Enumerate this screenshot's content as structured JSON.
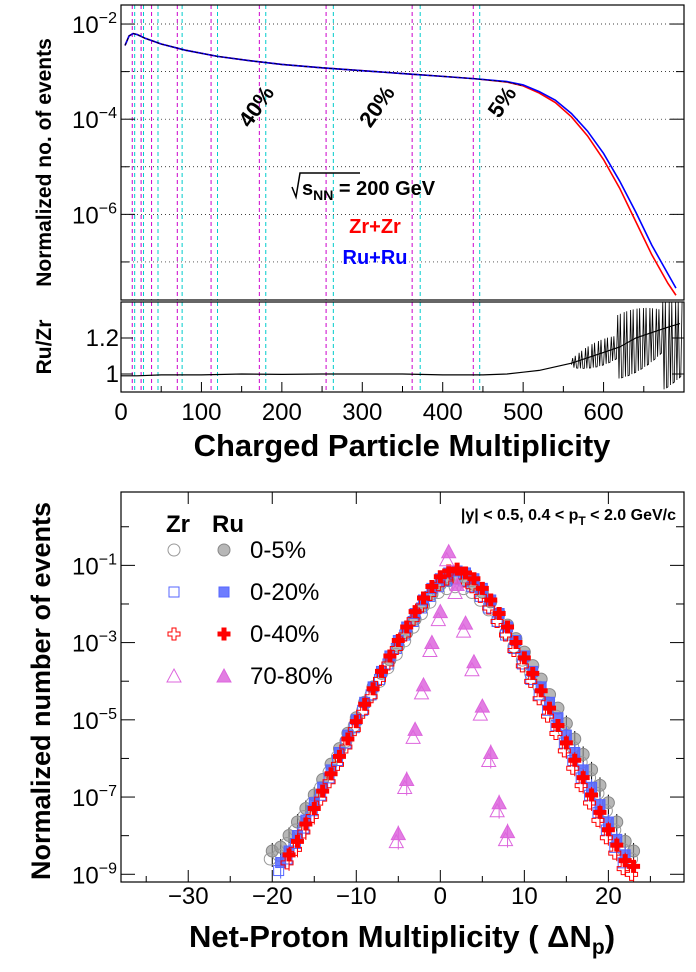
{
  "chart_data": [
    {
      "type": "line",
      "panel": "top-upper",
      "ylabel": "Normalized no. of events",
      "ylog": true,
      "xlim": [
        0,
        700
      ],
      "ylim_exp": [
        -7.8,
        -1.6
      ],
      "y_ticks": [
        {
          "base": "10",
          "exp": "−2",
          "value_exp": -2
        },
        {
          "base": "10",
          "exp": "−4",
          "value_exp": -4
        },
        {
          "base": "10",
          "exp": "−6",
          "value_exp": -6
        }
      ],
      "series": [
        {
          "name": "Zr+Zr",
          "color": "#ff0000",
          "x": [
            5,
            10,
            15,
            20,
            30,
            50,
            80,
            120,
            160,
            200,
            250,
            300,
            350,
            400,
            440,
            480,
            500,
            520,
            540,
            560,
            580,
            600,
            620,
            640,
            660,
            680,
            690
          ],
          "y_log10": [
            -2.45,
            -2.25,
            -2.2,
            -2.22,
            -2.3,
            -2.42,
            -2.55,
            -2.68,
            -2.77,
            -2.85,
            -2.92,
            -2.98,
            -3.04,
            -3.1,
            -3.15,
            -3.22,
            -3.3,
            -3.45,
            -3.65,
            -3.95,
            -4.35,
            -4.85,
            -5.45,
            -6.15,
            -6.85,
            -7.45,
            -7.7
          ]
        },
        {
          "name": "Ru+Ru",
          "color": "#0000ff",
          "x": [
            5,
            10,
            15,
            20,
            30,
            50,
            80,
            120,
            160,
            200,
            250,
            300,
            350,
            400,
            440,
            480,
            500,
            520,
            540,
            560,
            580,
            600,
            620,
            640,
            660,
            680,
            690
          ],
          "y_log10": [
            -2.45,
            -2.25,
            -2.2,
            -2.22,
            -2.3,
            -2.42,
            -2.55,
            -2.68,
            -2.77,
            -2.85,
            -2.92,
            -2.98,
            -3.04,
            -3.1,
            -3.15,
            -3.21,
            -3.28,
            -3.42,
            -3.6,
            -3.88,
            -4.25,
            -4.72,
            -5.3,
            -5.95,
            -6.65,
            -7.25,
            -7.55
          ]
        }
      ],
      "centrality_labels": [
        {
          "text": "40%",
          "x": 160,
          "y_exp": -4.2
        },
        {
          "text": "20%",
          "x": 310,
          "y_exp": -4.2
        },
        {
          "text": "5%",
          "x": 470,
          "y_exp": -4.0
        }
      ],
      "cut_lines": {
        "magenta": [
          14,
          25,
          38,
          70,
          112,
          172,
          255,
          362,
          438
        ],
        "cyan": [
          17,
          28,
          46,
          76,
          120,
          180,
          264,
          372,
          446
        ]
      },
      "energy_label": "s",
      "energy_sub": "NN",
      "energy_value": " = 200 GeV",
      "legend": [
        {
          "text": "Zr+Zr",
          "color": "#ff0000"
        },
        {
          "text": "Ru+Ru",
          "color": "#0000ff"
        }
      ]
    },
    {
      "type": "line",
      "panel": "top-ratio",
      "ylabel": "Ru/Zr",
      "xlabel": "Charged Particle Multiplicity",
      "xlim": [
        0,
        700
      ],
      "ylim": [
        0.9,
        1.4
      ],
      "x_ticks": [
        "0",
        "100",
        "200",
        "300",
        "400",
        "500",
        "600"
      ],
      "y_ticks": [
        "1",
        "1.2"
      ],
      "ratio_points": {
        "x": [
          0,
          20,
          50,
          100,
          150,
          200,
          250,
          300,
          350,
          400,
          450,
          480,
          500,
          520,
          540,
          560,
          580,
          600,
          620,
          640,
          660,
          680,
          695
        ],
        "y": [
          0.99,
          0.99,
          0.995,
          0.995,
          1.0,
          0.998,
          1.0,
          1.0,
          1.0,
          0.995,
          0.995,
          1.0,
          1.01,
          1.02,
          1.04,
          1.06,
          1.09,
          1.12,
          1.15,
          1.2,
          1.23,
          1.26,
          1.28
        ]
      }
    },
    {
      "type": "scatter",
      "panel": "bottom",
      "ylabel": "Normalized number of events",
      "xlabel_main": "Net-Proton Multiplicity ( ΔN",
      "xlabel_sub": "p",
      "xlabel_tail": ")",
      "ylog": true,
      "xlim": [
        -38,
        29
      ],
      "ylim_exp": [
        -9.2,
        0.9
      ],
      "x_ticks": [
        "−30",
        "−20",
        "−10",
        "0",
        "10",
        "20"
      ],
      "x_tick_values": [
        -30,
        -20,
        -10,
        0,
        10,
        20
      ],
      "y_ticks": [
        {
          "base": "10",
          "exp": "−1",
          "value_exp": -1
        },
        {
          "base": "10",
          "exp": "−3",
          "value_exp": -3
        },
        {
          "base": "10",
          "exp": "−5",
          "value_exp": -5
        },
        {
          "base": "10",
          "exp": "−7",
          "value_exp": -7
        },
        {
          "base": "10",
          "exp": "−9",
          "value_exp": -9
        }
      ],
      "kinematics": "|y| < 0.5, 0.4 < p",
      "kinematics_sub": "T",
      "kinematics_tail": " < 2.0 GeV/c",
      "legend_header": [
        "Zr",
        "Ru"
      ],
      "legend_rows": [
        "0-5%",
        "0-20%",
        "0-40%",
        "70-80%"
      ],
      "series": [
        {
          "name": "0-5%",
          "color": "#aaaaaa",
          "marker": "circle",
          "x": [
            -20,
            -19,
            -18,
            -17,
            -16,
            -15,
            -14,
            -13,
            -12,
            -11,
            -10,
            -9,
            -8,
            -7,
            -6,
            -5,
            -4,
            -3,
            -2,
            -1,
            0,
            1,
            2,
            3,
            4,
            5,
            6,
            7,
            8,
            9,
            10,
            11,
            12,
            13,
            14,
            15,
            16,
            17,
            18,
            19,
            20,
            21,
            22,
            23
          ],
          "y_log10": [
            -8.5,
            -8.4,
            -8.1,
            -7.75,
            -7.4,
            -7.05,
            -6.65,
            -6.25,
            -5.85,
            -5.45,
            -5.05,
            -4.65,
            -4.25,
            -3.9,
            -3.55,
            -3.2,
            -2.85,
            -2.5,
            -2.15,
            -1.85,
            -1.6,
            -1.5,
            -1.45,
            -1.5,
            -1.6,
            -1.8,
            -2.05,
            -2.35,
            -2.65,
            -3.0,
            -3.35,
            -3.7,
            -4.05,
            -4.45,
            -4.8,
            -5.2,
            -5.6,
            -6.0,
            -6.4,
            -6.8,
            -7.25,
            -7.75,
            -8.25,
            -8.5
          ]
        },
        {
          "name": "0-20%",
          "color": "#5566ff",
          "marker": "square",
          "x": [
            -19,
            -18,
            -17,
            -16,
            -15,
            -14,
            -13,
            -12,
            -11,
            -10,
            -9,
            -8,
            -7,
            -6,
            -5,
            -4,
            -3,
            -2,
            -1,
            0,
            1,
            2,
            3,
            4,
            5,
            6,
            7,
            8,
            9,
            10,
            11,
            12,
            13,
            14,
            15,
            16,
            17,
            18,
            19,
            20,
            21,
            22
          ],
          "y_log10": [
            -8.8,
            -8.5,
            -8.1,
            -7.7,
            -7.25,
            -6.85,
            -6.4,
            -5.95,
            -5.5,
            -5.1,
            -4.65,
            -4.25,
            -3.85,
            -3.45,
            -3.05,
            -2.7,
            -2.35,
            -2.0,
            -1.7,
            -1.45,
            -1.3,
            -1.25,
            -1.3,
            -1.45,
            -1.7,
            -2.0,
            -2.35,
            -2.7,
            -3.05,
            -3.45,
            -3.85,
            -4.25,
            -4.65,
            -5.05,
            -5.5,
            -5.95,
            -6.4,
            -6.85,
            -7.3,
            -7.75,
            -8.2,
            -8.6
          ]
        },
        {
          "name": "0-40%",
          "color": "#ff0000",
          "marker": "cross",
          "x": [
            -18,
            -17,
            -16,
            -15,
            -14,
            -13,
            -12,
            -11,
            -10,
            -9,
            -8,
            -7,
            -6,
            -5,
            -4,
            -3,
            -2,
            -1,
            0,
            1,
            2,
            3,
            4,
            5,
            6,
            7,
            8,
            9,
            10,
            11,
            12,
            13,
            14,
            15,
            16,
            17,
            18,
            19,
            20,
            21,
            22,
            23
          ],
          "y_log10": [
            -8.6,
            -8.25,
            -7.8,
            -7.4,
            -6.95,
            -6.5,
            -6.05,
            -5.6,
            -5.15,
            -4.7,
            -4.3,
            -3.85,
            -3.45,
            -3.05,
            -2.7,
            -2.3,
            -1.95,
            -1.65,
            -1.4,
            -1.25,
            -1.2,
            -1.3,
            -1.45,
            -1.7,
            -2.0,
            -2.35,
            -2.7,
            -3.1,
            -3.5,
            -3.9,
            -4.35,
            -4.8,
            -5.25,
            -5.7,
            -6.15,
            -6.6,
            -7.05,
            -7.5,
            -7.95,
            -8.35,
            -8.75,
            -8.9
          ]
        },
        {
          "name": "70-80%",
          "color": "#dd66dd",
          "marker": "triangle",
          "x": [
            -5,
            -4,
            -3,
            -2,
            -1,
            0,
            1,
            2,
            3,
            4,
            5,
            6,
            7,
            8
          ],
          "y_log10": [
            -8.05,
            -6.65,
            -5.35,
            -4.2,
            -3.1,
            -2.3,
            -0.75,
            -1.6,
            -2.6,
            -3.6,
            -4.75,
            -5.95,
            -7.25,
            -8.0
          ]
        }
      ]
    }
  ]
}
